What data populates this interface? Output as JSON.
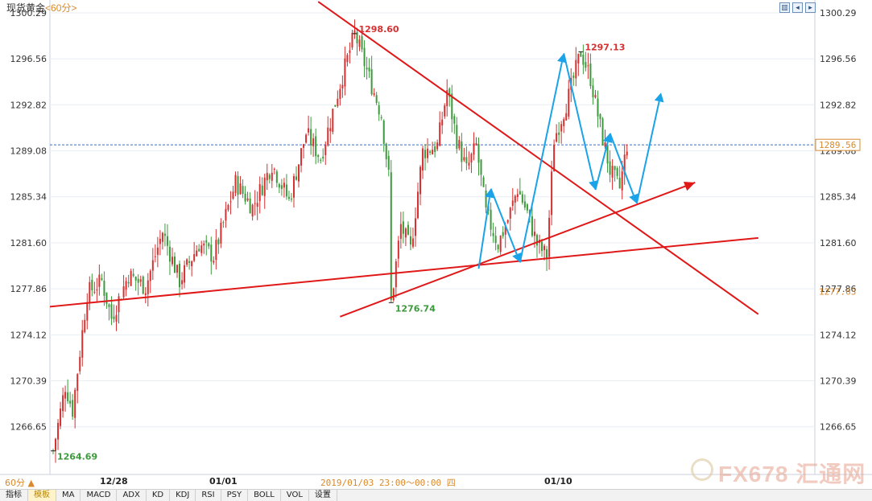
{
  "header": {
    "title": "现货黄金",
    "timeframe": "<60分>"
  },
  "toolbar_icons": [
    "layout-icon",
    "prev-icon",
    "next-icon"
  ],
  "footer": {
    "period_label": "60分 ▲",
    "cursor_time": "2019/01/03 23:00～00:00 四",
    "tabs": [
      "指标",
      "模板",
      "MA",
      "MACD",
      "ADX",
      "KD",
      "KDJ",
      "RSI",
      "PSY",
      "BOLL",
      "VOL",
      "设置"
    ],
    "active_tab": "模板"
  },
  "watermark": "FX678 汇通网",
  "colors": {
    "up": "#d63030",
    "down": "#3c9a3c",
    "trendline": "#e01818",
    "arrow": "#1aa3e8",
    "current_price_line": "#3c6fc4",
    "axis_text": "#333333",
    "grid": "#e8eef5"
  },
  "chart_data": {
    "type": "candlestick",
    "ylim": [
      1262.5,
      1300.29
    ],
    "y_ticks": [
      1300.29,
      1296.56,
      1292.82,
      1289.08,
      1285.34,
      1281.6,
      1277.86,
      1274.12,
      1270.39,
      1266.65
    ],
    "x_tick_labels": [
      "12/28",
      "01/01",
      "01/10"
    ],
    "current_price": "1289.56",
    "secondary_price": "1277.63",
    "annotations": [
      {
        "text": "1298.60",
        "price": 1298.6,
        "color": "up"
      },
      {
        "text": "1297.13",
        "price": 1297.13,
        "color": "up"
      },
      {
        "text": "1276.74",
        "price": 1276.74,
        "color": "down"
      },
      {
        "text": "1264.69",
        "price": 1264.69,
        "color": "down"
      }
    ],
    "waypoints": [
      [
        1264.7,
        0
      ],
      [
        1270.0,
        5
      ],
      [
        1268.0,
        8
      ],
      [
        1277.5,
        14
      ],
      [
        1278.5,
        20
      ],
      [
        1275.5,
        24
      ],
      [
        1279.0,
        31
      ],
      [
        1278.0,
        38
      ],
      [
        1282.5,
        45
      ],
      [
        1278.5,
        52
      ],
      [
        1281.5,
        60
      ],
      [
        1280.5,
        66
      ],
      [
        1286.5,
        75
      ],
      [
        1284.5,
        82
      ],
      [
        1288.0,
        90
      ],
      [
        1285.0,
        97
      ],
      [
        1290.5,
        104
      ],
      [
        1288.5,
        110
      ],
      [
        1294.5,
        118
      ],
      [
        1298.6,
        124
      ],
      [
        1295.0,
        130
      ],
      [
        1292.0,
        135
      ],
      [
        1287.0,
        138
      ],
      [
        1276.74,
        139
      ],
      [
        1283.0,
        143
      ],
      [
        1281.0,
        147
      ],
      [
        1289.0,
        152
      ],
      [
        1289.5,
        158
      ],
      [
        1294.0,
        162
      ],
      [
        1290.0,
        166
      ],
      [
        1287.5,
        170
      ],
      [
        1289.5,
        174
      ],
      [
        1284.0,
        178
      ],
      [
        1281.5,
        183
      ],
      [
        1283.5,
        187
      ],
      [
        1286.0,
        191
      ],
      [
        1284.0,
        195
      ],
      [
        1281.5,
        199
      ],
      [
        1280.5,
        203
      ],
      [
        1290.0,
        206
      ],
      [
        1293.5,
        212
      ],
      [
        1297.13,
        217
      ],
      [
        1295.0,
        221
      ],
      [
        1291.0,
        225
      ],
      [
        1287.5,
        229
      ],
      [
        1286.0,
        233
      ],
      [
        1289.6,
        236
      ]
    ],
    "trendlines": [
      {
        "name": "support-long",
        "p1": [
          -2,
          1276.4
        ],
        "p2": [
          290,
          1282.0
        ]
      },
      {
        "name": "support-short",
        "p1": [
          118,
          1275.6
        ],
        "p2": [
          264,
          1286.5
        ]
      },
      {
        "name": "resistance",
        "p1": [
          109,
          1301.2
        ],
        "p2": [
          290,
          1275.8
        ]
      }
    ],
    "projection_arrows": [
      [
        [
          175,
          1279.5
        ],
        [
          180,
          1286.0
        ],
        [
          192,
          1280.0
        ],
        [
          210,
          1297.0
        ],
        [
          223,
          1285.9
        ],
        [
          229,
          1290.5
        ],
        [
          240,
          1284.8
        ],
        [
          250,
          1293.8
        ]
      ]
    ]
  }
}
